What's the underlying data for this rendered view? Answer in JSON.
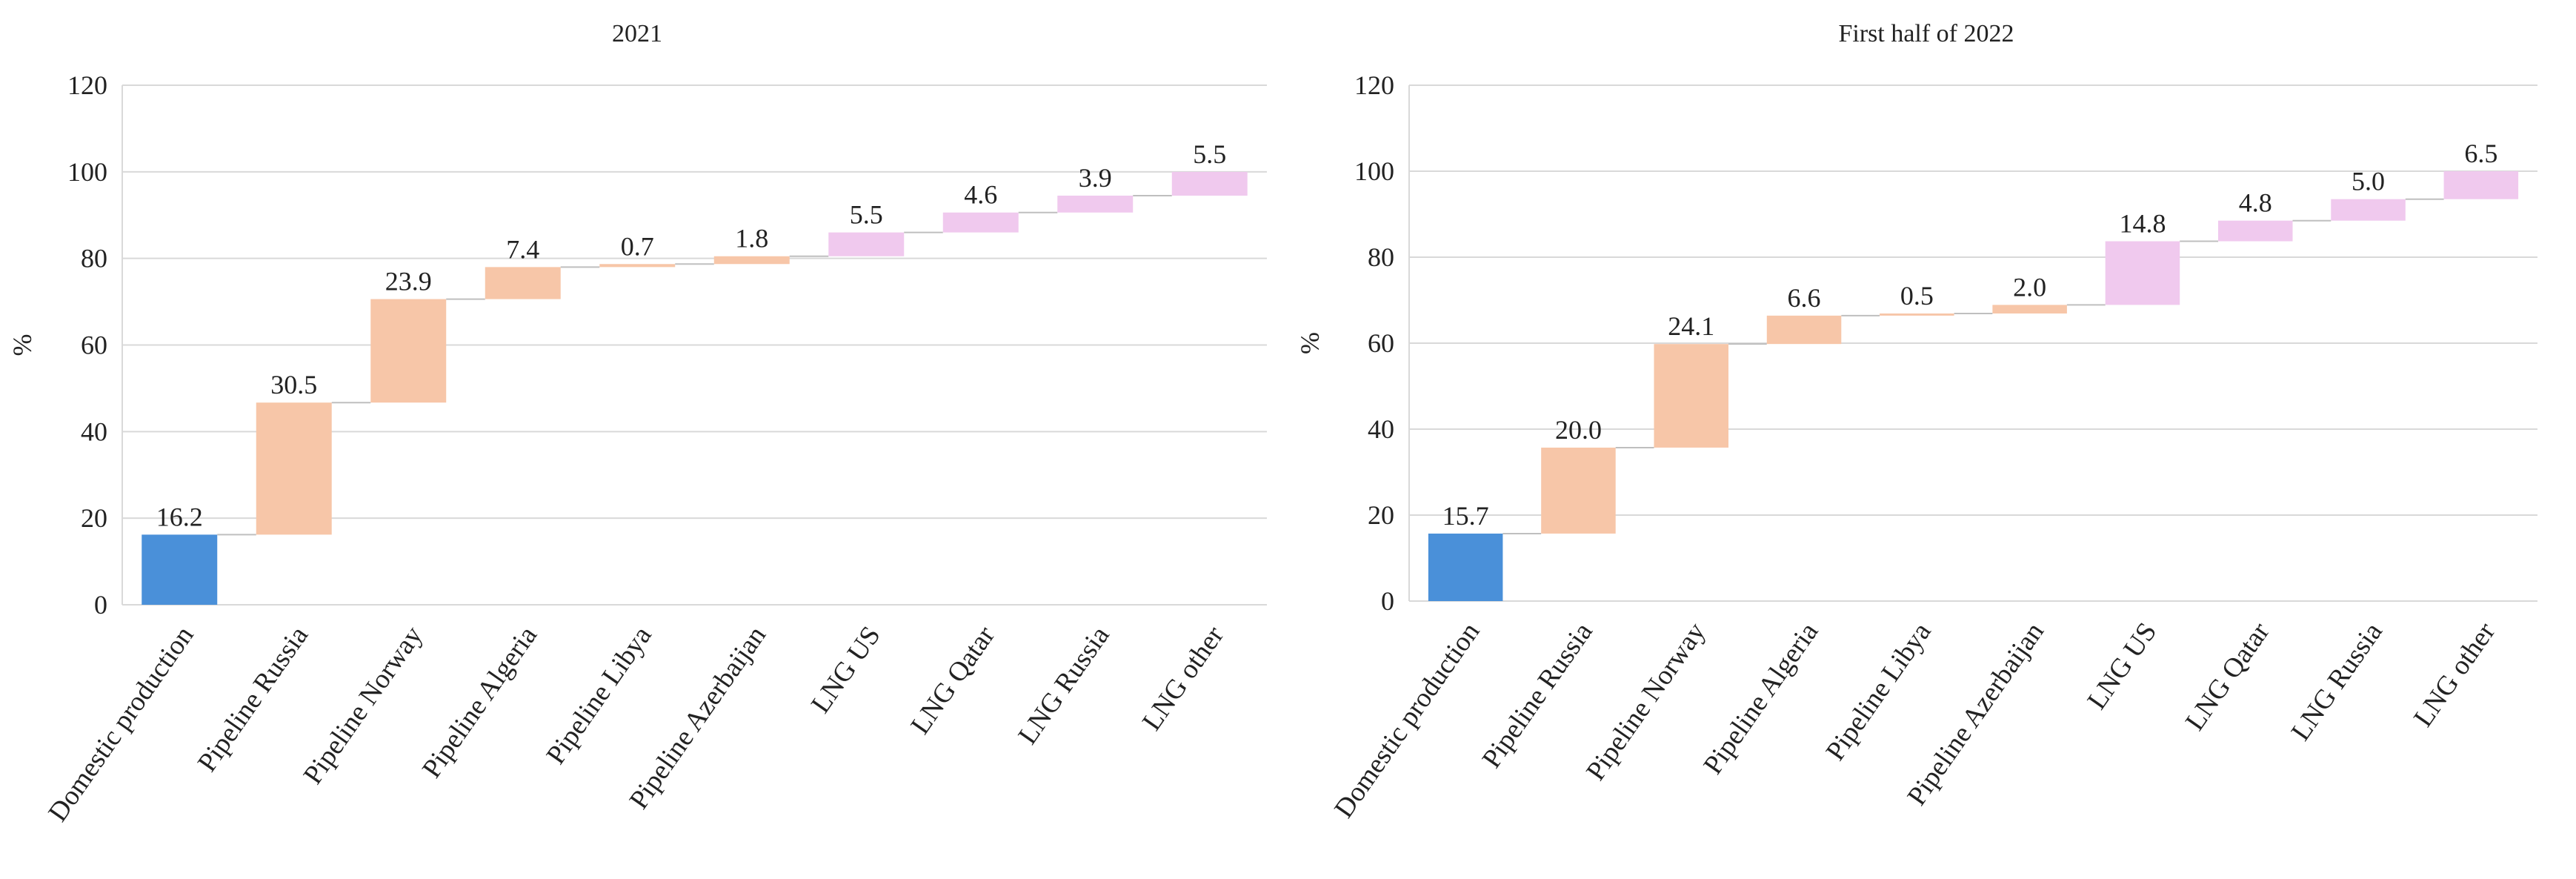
{
  "chart_data": [
    {
      "type": "bar",
      "subtype": "waterfall",
      "title": "2021",
      "xlabel": "",
      "ylabel": "%",
      "ylim": [
        0,
        120
      ],
      "yticks": [
        0,
        20,
        40,
        60,
        80,
        100,
        120
      ],
      "grid": true,
      "categories": [
        "Domestic production",
        "Pipeline Russia",
        "Pipeline Norway",
        "Pipeline Algeria",
        "Pipeline Libya",
        "Pipeline Azerbaijan",
        "LNG US",
        "LNG Qatar",
        "LNG Russia",
        "LNG other"
      ],
      "values": [
        16.2,
        30.5,
        23.9,
        7.4,
        0.7,
        1.8,
        5.5,
        4.6,
        3.9,
        5.5
      ],
      "value_labels": [
        "16.2",
        "30.5",
        "23.9",
        "7.4",
        "0.7",
        "1.8",
        "5.5",
        "4.6",
        "3.9",
        "5.5"
      ],
      "groups": [
        "domestic",
        "pipeline",
        "pipeline",
        "pipeline",
        "pipeline",
        "pipeline",
        "lng",
        "lng",
        "lng",
        "lng"
      ]
    },
    {
      "type": "bar",
      "subtype": "waterfall",
      "title": "First half of 2022",
      "xlabel": "",
      "ylabel": "%",
      "ylim": [
        0,
        120
      ],
      "yticks": [
        0,
        20,
        40,
        60,
        80,
        100,
        120
      ],
      "grid": true,
      "categories": [
        "Domestic production",
        "Pipeline Russia",
        "Pipeline Norway",
        "Pipeline Algeria",
        "Pipeline Libya",
        "Pipeline Azerbaijan",
        "LNG US",
        "LNG Qatar",
        "LNG Russia",
        "LNG other"
      ],
      "values": [
        15.7,
        20.0,
        24.1,
        6.6,
        0.5,
        2.0,
        14.8,
        4.8,
        5.0,
        6.5
      ],
      "value_labels": [
        "15.7",
        "20.0",
        "24.1",
        "6.6",
        "0.5",
        "2.0",
        "14.8",
        "4.8",
        "5.0",
        "6.5"
      ],
      "groups": [
        "domestic",
        "pipeline",
        "pipeline",
        "pipeline",
        "pipeline",
        "pipeline",
        "lng",
        "lng",
        "lng",
        "lng"
      ]
    }
  ],
  "colors": {
    "domestic": "#4a90d9",
    "pipeline": "#f7c6a8",
    "lng": "#f0c9ee"
  }
}
